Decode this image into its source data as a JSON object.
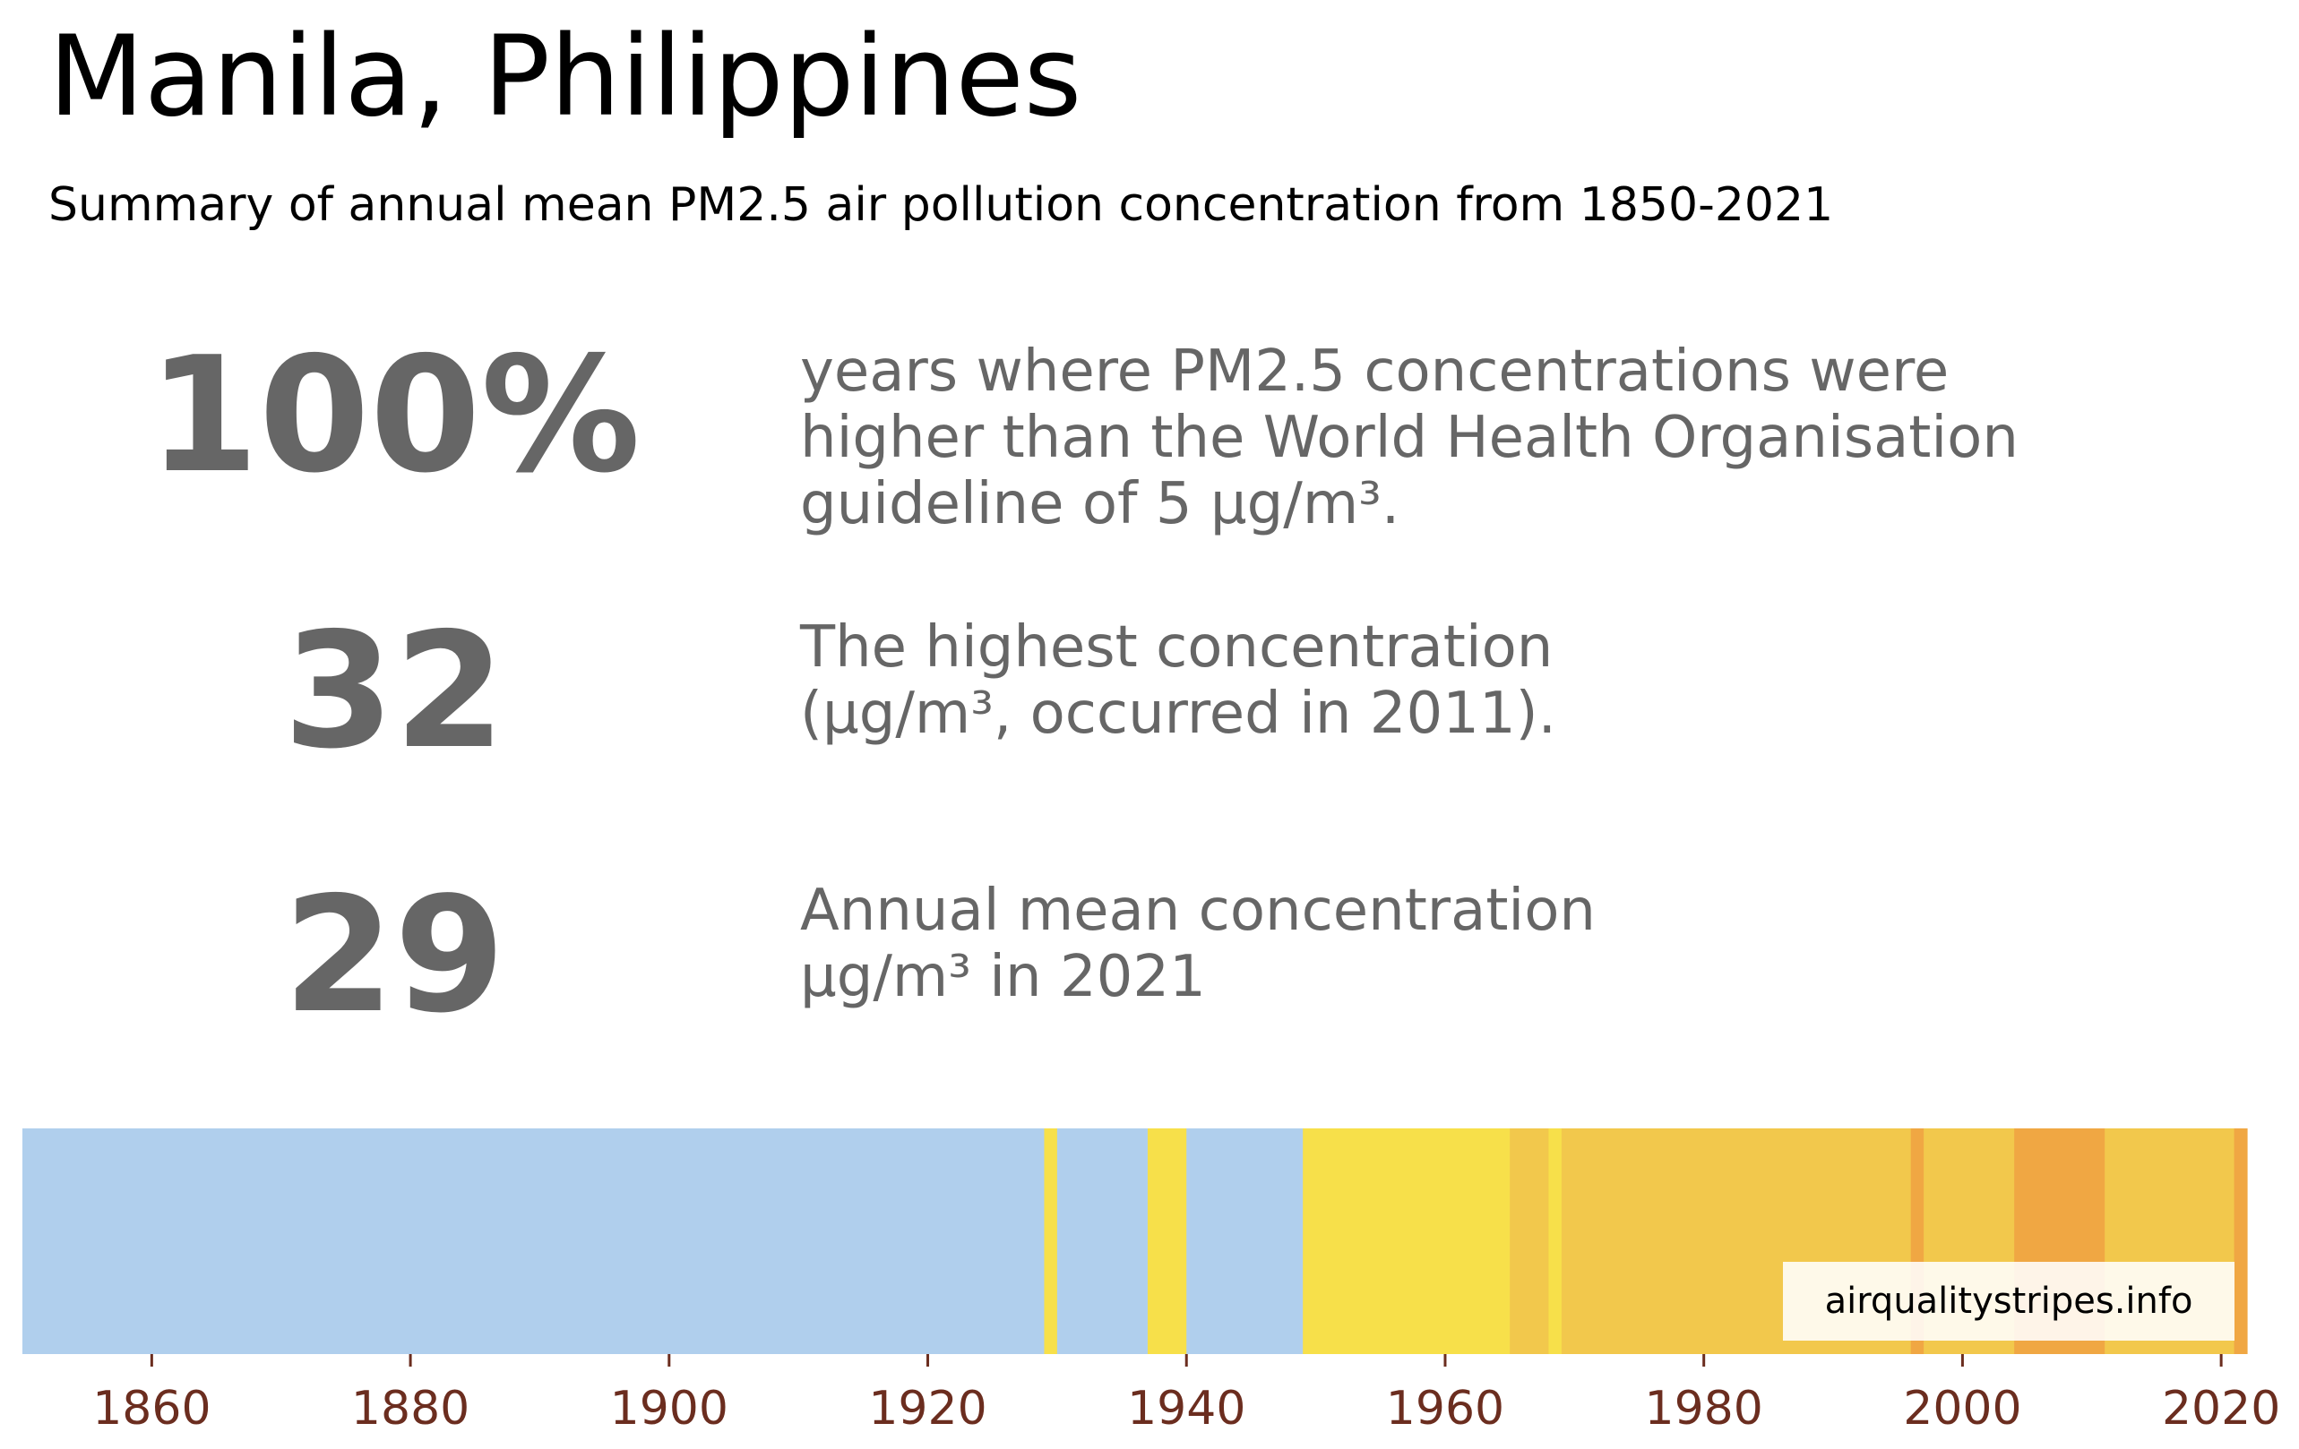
{
  "title": "Manila, Philippines",
  "subtitle": "Summary of annual mean PM2.5 air pollution concentration from 1850-2021",
  "stats": [
    {
      "value": "100%",
      "description": "years where PM2.5 concentrations were\nhigher than the World Health Organisation\nguideline of 5 µg/m³."
    },
    {
      "value": "32",
      "description": "The highest concentration\n(µg/m³, occurred in 2011)."
    },
    {
      "value": "29",
      "description": "Annual mean concentration\nµg/m³ in 2021"
    }
  ],
  "source": "airqualitystripes.info",
  "colors": {
    "text_gray": "#666666",
    "tick_label": "#6b2d1f",
    "band_low": "#b0cfed",
    "band_mid": "#f7e04a",
    "band_high": "#f2c84c",
    "band_peak": "#f0a743"
  },
  "chart_data": {
    "type": "heatmap",
    "title": "",
    "xlabel": "",
    "ylabel": "",
    "xlim": [
      1850,
      2022
    ],
    "xticks": [
      1860,
      1880,
      1900,
      1920,
      1940,
      1960,
      1980,
      2000,
      2020
    ],
    "segments": [
      {
        "start": 1850,
        "end": 1929,
        "color": "#b0cfed"
      },
      {
        "start": 1929,
        "end": 1930,
        "color": "#f7e04a"
      },
      {
        "start": 1930,
        "end": 1937,
        "color": "#b0cfed"
      },
      {
        "start": 1937,
        "end": 1940,
        "color": "#f7e04a"
      },
      {
        "start": 1940,
        "end": 1949,
        "color": "#b0cfed"
      },
      {
        "start": 1949,
        "end": 1965,
        "color": "#f7e04a"
      },
      {
        "start": 1965,
        "end": 1968,
        "color": "#f2c84c"
      },
      {
        "start": 1968,
        "end": 1969,
        "color": "#f7e04a"
      },
      {
        "start": 1969,
        "end": 1996,
        "color": "#f2c84c"
      },
      {
        "start": 1996,
        "end": 1997,
        "color": "#f0a743"
      },
      {
        "start": 1997,
        "end": 2004,
        "color": "#f2c84c"
      },
      {
        "start": 2004,
        "end": 2011,
        "color": "#f0a743"
      },
      {
        "start": 2011,
        "end": 2021,
        "color": "#f2c84c"
      },
      {
        "start": 2021,
        "end": 2022,
        "color": "#f0a743"
      }
    ]
  }
}
